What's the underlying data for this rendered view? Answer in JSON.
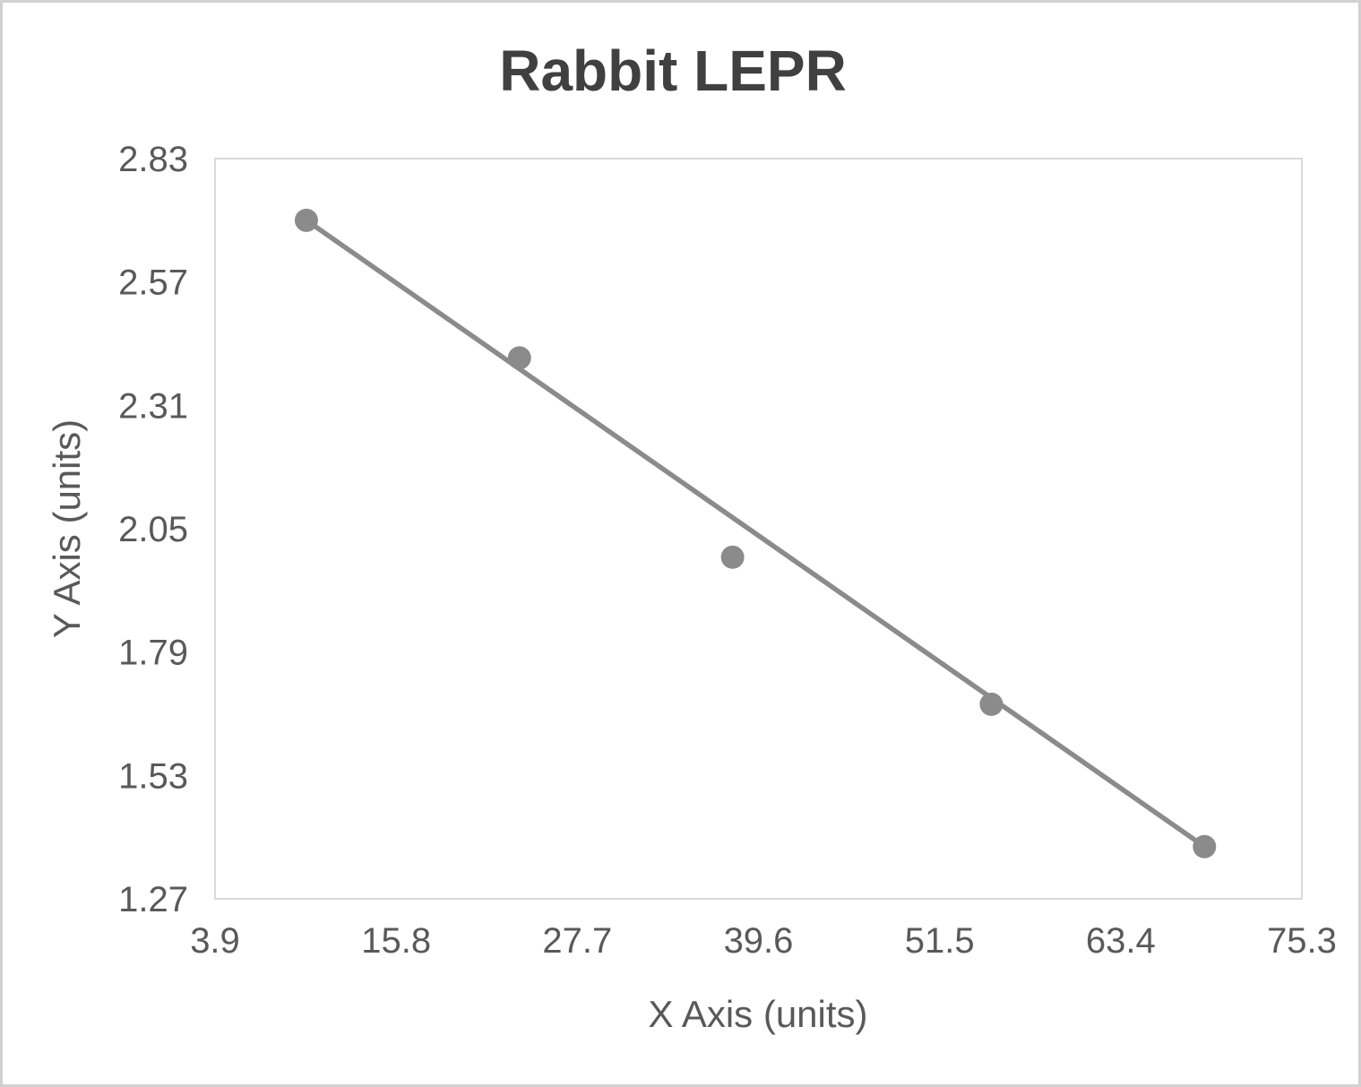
{
  "chart_data": {
    "type": "scatter",
    "title": "Rabbit LEPR",
    "xlabel": "X Axis (units)",
    "ylabel": "Y Axis (units)",
    "x_ticks": [
      "3.9",
      "15.8",
      "27.7",
      "39.6",
      "51.5",
      "63.4",
      "75.3"
    ],
    "y_ticks": [
      "1.27",
      "1.53",
      "1.79",
      "2.05",
      "2.31",
      "2.57",
      "2.83"
    ],
    "xlim": [
      3.9,
      75.3
    ],
    "ylim": [
      1.27,
      2.83
    ],
    "grid": false,
    "legend": "none",
    "series": [
      {
        "name": "data-points",
        "kind": "scatter",
        "points": [
          {
            "x": 9.9,
            "y": 2.7
          },
          {
            "x": 23.9,
            "y": 2.41
          },
          {
            "x": 37.9,
            "y": 1.99
          },
          {
            "x": 54.9,
            "y": 1.68
          },
          {
            "x": 68.9,
            "y": 1.38
          }
        ]
      },
      {
        "name": "trendline",
        "kind": "line",
        "from": {
          "x": 9.9,
          "y": 2.7
        },
        "to": {
          "x": 68.9,
          "y": 1.38
        }
      }
    ],
    "colors": {
      "title": "#404040",
      "labels": "#595959",
      "ticks": "#595959",
      "marker": "#8b8b8b",
      "trendline": "#8b8b8b",
      "plot_border": "#d9d9d9",
      "page_border": "#d2d0d0",
      "background": "#ffffff"
    }
  }
}
